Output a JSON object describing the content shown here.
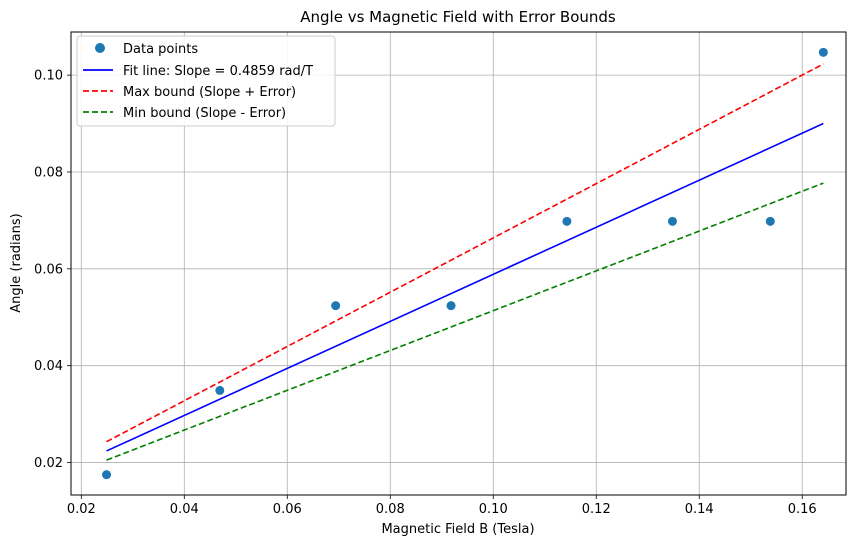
{
  "chart_data": {
    "type": "scatter",
    "title": "Angle vs Magnetic Field with Error Bounds",
    "xlabel": "Magnetic Field B (Tesla)",
    "ylabel": "Angle (radians)",
    "xlim": [
      0.018,
      0.1685
    ],
    "ylim": [
      0.0133,
      0.1089
    ],
    "grid": true,
    "legend_position": "top-left",
    "x_ticks": [
      0.02,
      0.04,
      0.06,
      0.08,
      0.1,
      0.12,
      0.14,
      0.16
    ],
    "x_tick_labels": [
      "0.02",
      "0.04",
      "0.06",
      "0.08",
      "0.10",
      "0.12",
      "0.14",
      "0.16"
    ],
    "y_ticks": [
      0.02,
      0.04,
      0.06,
      0.08,
      0.1
    ],
    "y_tick_labels": [
      "0.02",
      "0.04",
      "0.06",
      "0.08",
      "0.10"
    ],
    "series": [
      {
        "name": "Data points",
        "kind": "points",
        "color": "#1f77b4",
        "x": [
          0.0249,
          0.0469,
          0.0694,
          0.0918,
          0.1143,
          0.1348,
          0.1538,
          0.1641
        ],
        "y": [
          0.0175,
          0.0349,
          0.0524,
          0.0524,
          0.0698,
          0.0698,
          0.0698,
          0.1047
        ]
      },
      {
        "name": "Fit line: Slope = 0.4859 rad/T",
        "kind": "line",
        "color": "#0000ff",
        "dash": "solid",
        "x": [
          0.0249,
          0.1641
        ],
        "y": [
          0.0224,
          0.09
        ]
      },
      {
        "name": "Max bound (Slope + Error)",
        "kind": "line",
        "color": "#ff0000",
        "dash": "dashed",
        "x": [
          0.0249,
          0.1641
        ],
        "y": [
          0.0243,
          0.1023
        ]
      },
      {
        "name": "Min bound (Slope - Error)",
        "kind": "line",
        "color": "#008000",
        "dash": "dashed",
        "x": [
          0.0249,
          0.1641
        ],
        "y": [
          0.0205,
          0.0777
        ]
      }
    ]
  }
}
